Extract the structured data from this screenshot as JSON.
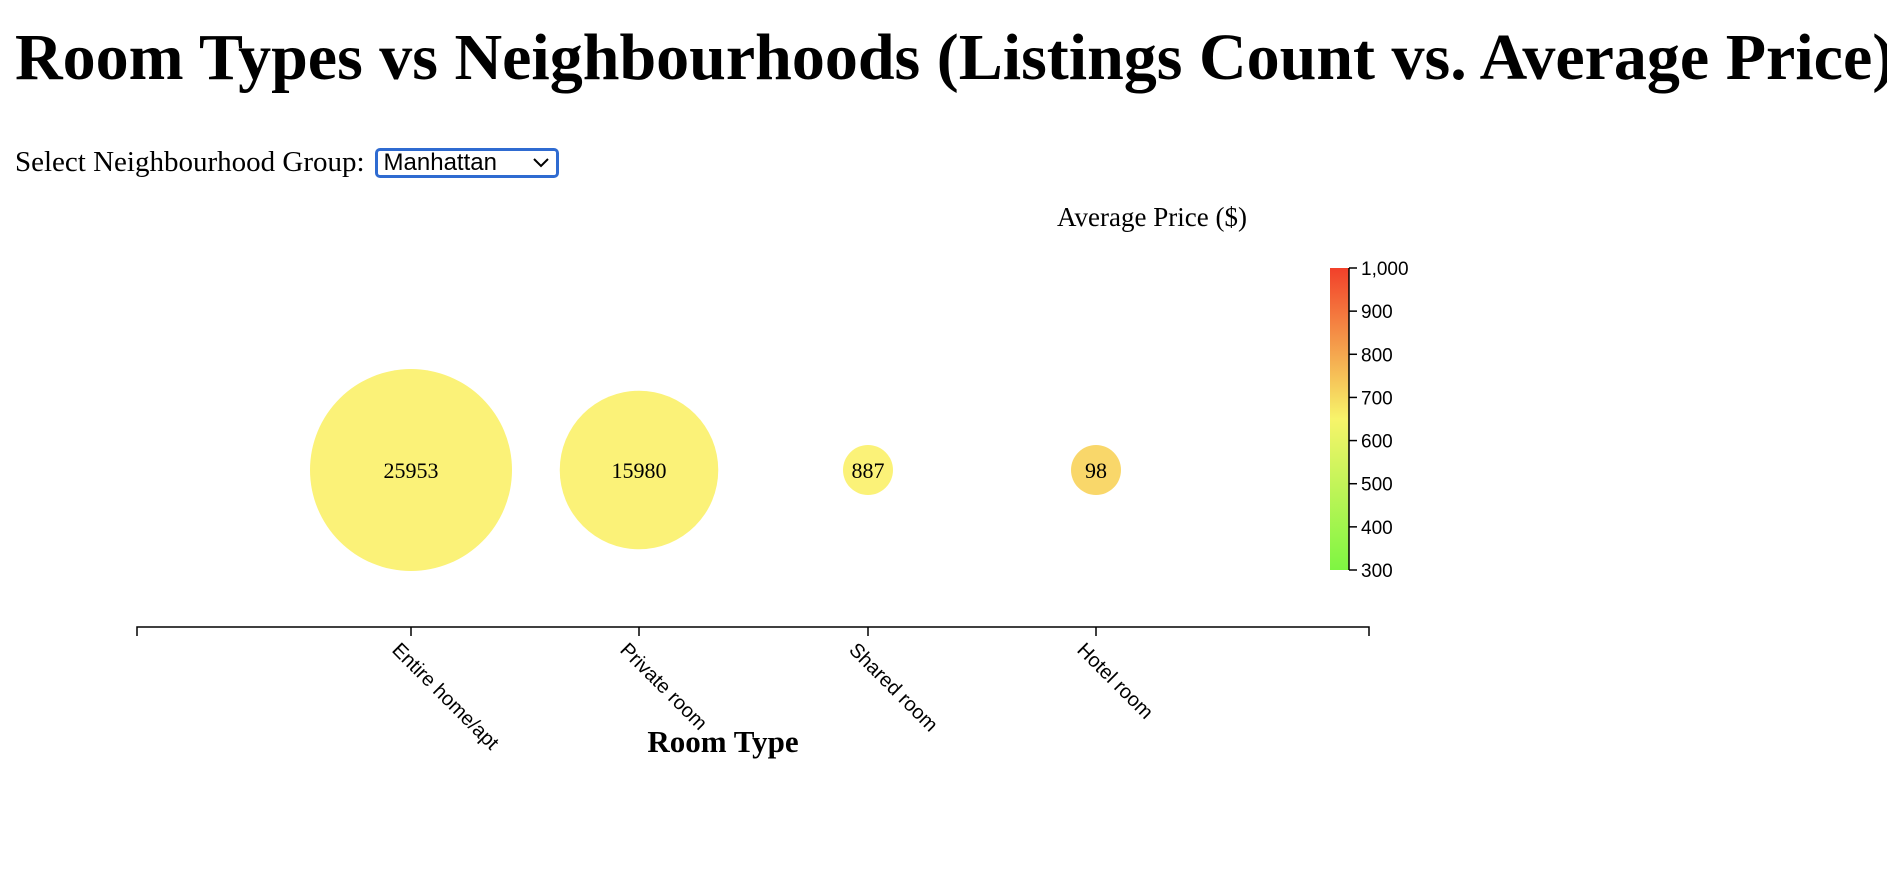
{
  "title": "Room Types vs Neighbourhoods (Listings Count vs. Average Price)",
  "filter": {
    "label": "Select Neighbourhood Group:",
    "selected": "Manhattan"
  },
  "chart_data": {
    "type": "scatter",
    "subtype": "bubble",
    "xlabel": "Room Type",
    "colorbar_label": "Average Price ($)",
    "categories": [
      "Entire home/apt",
      "Private room",
      "Shared room",
      "Hotel room"
    ],
    "counts": [
      25953,
      15980,
      887,
      98
    ],
    "color_scale": {
      "domain": [
        300,
        1000
      ],
      "ticks": [
        "1,000",
        "900",
        "800",
        "700",
        "600",
        "500",
        "400",
        "300"
      ],
      "colors": [
        "#7ef542",
        "#f7f46a",
        "#f2402a"
      ]
    },
    "point_colors": [
      "#fbf278",
      "#fbf278",
      "#fbf278",
      "#f9d76a"
    ],
    "grid": false
  }
}
